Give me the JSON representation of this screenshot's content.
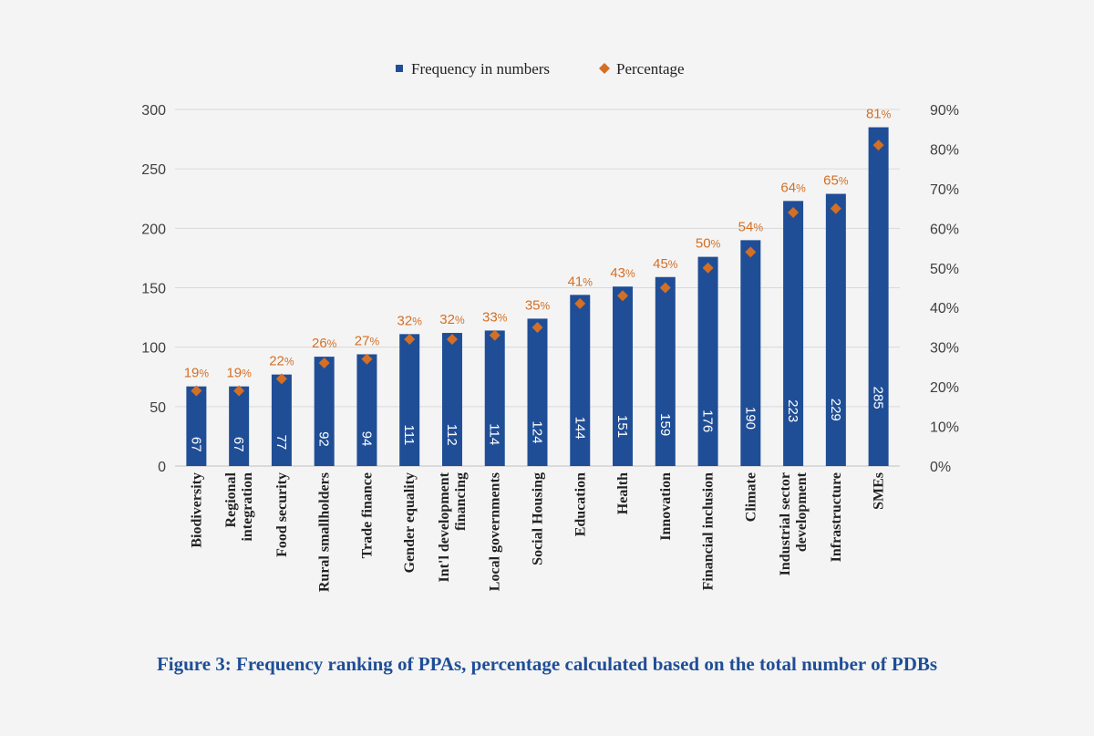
{
  "chart_data": {
    "type": "bar",
    "caption": "Figure 3: Frequency ranking of PPAs, percentage calculated based on the total number of PDBs",
    "legend": {
      "position": "top-center",
      "items": [
        {
          "name": "Frequency in numbers",
          "marker": "square",
          "color": "#1f4e96"
        },
        {
          "name": "Percentage",
          "marker": "diamond",
          "color": "#d46f24"
        }
      ]
    },
    "categories": [
      [
        "Biodiversity"
      ],
      [
        "Regional",
        "integration"
      ],
      [
        "Food security"
      ],
      [
        "Rural smallholders"
      ],
      [
        "Trade finance"
      ],
      [
        "Gender equality"
      ],
      [
        "Int'l development",
        "financing"
      ],
      [
        "Local governments"
      ],
      [
        "Social Housing"
      ],
      [
        "Education"
      ],
      [
        "Health"
      ],
      [
        "Innovation"
      ],
      [
        "Financial inclusion"
      ],
      [
        "Climate"
      ],
      [
        "Industrial sector",
        "development"
      ],
      [
        "Infrastructure"
      ],
      [
        "SMEs"
      ]
    ],
    "series": [
      {
        "name": "Frequency in numbers",
        "type": "bar",
        "axis": "left",
        "color": "#1f4e96",
        "values": [
          67,
          67,
          77,
          92,
          94,
          111,
          112,
          114,
          124,
          144,
          151,
          159,
          176,
          190,
          223,
          229,
          285
        ]
      },
      {
        "name": "Percentage",
        "type": "scatter",
        "marker": "diamond",
        "axis": "right",
        "color": "#d46f24",
        "values": [
          19,
          19,
          22,
          26,
          27,
          32,
          32,
          33,
          35,
          41,
          43,
          45,
          50,
          54,
          64,
          65,
          81
        ]
      }
    ],
    "y_left": {
      "min": 0,
      "max": 300,
      "step": 50
    },
    "y_right": {
      "min": 0,
      "max": 90,
      "step": 10,
      "suffix": "%"
    },
    "grid": true
  }
}
